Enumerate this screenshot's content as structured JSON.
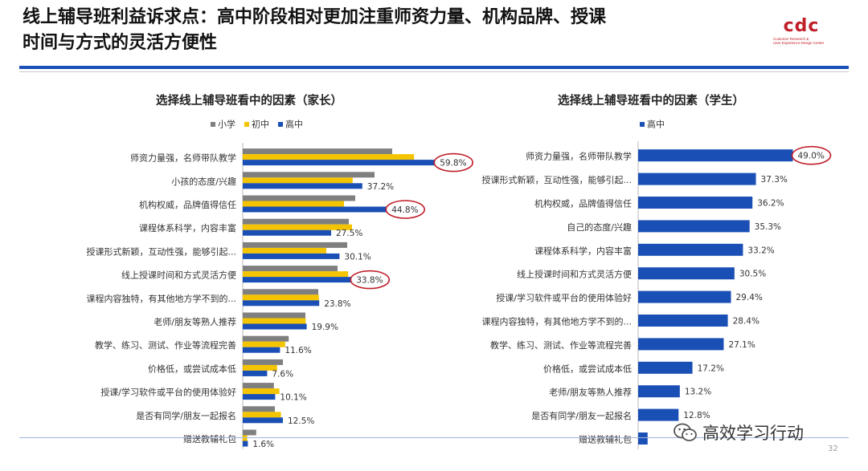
{
  "header": {
    "title": "线上辅导班利益诉求点：高中阶段相对更加注重师资力量、机构品牌、授课\n时间与方式的灵活方便性",
    "logo_text": "CDC",
    "logo_subtitle": "Customer Research &\nUser Experience Design Center"
  },
  "chart_data": [
    {
      "type": "bar",
      "orientation": "horizontal",
      "title": "选择线上辅导班看中的因素（家长）",
      "legend_position": "top",
      "categories": [
        "师资力量强，名师带队教学",
        "小孩的态度/兴趣",
        "机构权威，品牌值得信任",
        "课程体系科学，内容丰富",
        "授课形式新颖，互动性强，能够引起...",
        "线上授课时间和方式灵活方便",
        "课程内容独特，有其他地方学不到的...",
        "老师/朋友等熟人推荐",
        "教学、练习、测试、作业等流程完善",
        "价格低，或尝试成本低",
        "授课/学习软件或平台的使用体验好",
        "是否有同学/朋友一起报名",
        "赠送教辅礼包"
      ],
      "series": [
        {
          "name": "小学",
          "color": "#7f7f7f",
          "values": [
            46.5,
            41.0,
            35.0,
            33.0,
            32.5,
            29.5,
            23.5,
            19.5,
            14.3,
            12.5,
            9.7,
            10.0,
            4.2
          ]
        },
        {
          "name": "初中",
          "color": "#f5c400",
          "values": [
            53.3,
            34.2,
            31.5,
            34.0,
            26.0,
            32.8,
            23.7,
            19.6,
            13.2,
            10.7,
            11.4,
            11.9,
            1.4
          ]
        },
        {
          "name": "高中",
          "color": "#1a4fb5",
          "values": [
            59.8,
            37.2,
            44.8,
            27.5,
            30.1,
            33.8,
            23.8,
            19.9,
            11.6,
            7.6,
            10.1,
            12.5,
            1.6
          ]
        }
      ],
      "labels": [
        "59.8%",
        "37.2%",
        "44.8%",
        "27.5%",
        "30.1%",
        "33.8%",
        "23.8%",
        "19.9%",
        "11.6%",
        "7.6%",
        "10.1%",
        "12.5%",
        "1.6%"
      ],
      "highlighted": [
        0,
        2,
        5
      ],
      "xlim": [
        0,
        70
      ]
    },
    {
      "type": "bar",
      "orientation": "horizontal",
      "title": "选择线上辅导班看中的因素（学生）",
      "legend_position": "top",
      "categories": [
        "师资力量强，名师带队教学",
        "授课形式新颖，互动性强，能够引起...",
        "机构权威，品牌值得信任",
        "自己的态度/兴趣",
        "课程体系科学，内容丰富",
        "线上授课时间和方式灵活方便",
        "授课/学习软件或平台的使用体验好",
        "课程内容独特，有其他地方学不到的...",
        "教学、练习、测试、作业等流程完善",
        "价格低，或尝试成本低",
        "老师/朋友等熟人推荐",
        "是否有同学/朋友一起报名",
        "赠送教辅礼包"
      ],
      "series": [
        {
          "name": "高中",
          "color": "#1a4fb5",
          "values": [
            49.0,
            37.3,
            36.2,
            35.3,
            33.2,
            30.5,
            29.4,
            28.4,
            27.1,
            17.2,
            13.2,
            12.8,
            3.0
          ]
        }
      ],
      "labels": [
        "49.0%",
        "37.3%",
        "36.2%",
        "35.3%",
        "33.2%",
        "30.5%",
        "29.4%",
        "28.4%",
        "27.1%",
        "17.2%",
        "13.2%",
        "12.8%",
        ""
      ],
      "highlighted": [
        0
      ],
      "xlim": [
        0,
        70
      ]
    }
  ],
  "footer": {
    "watermark": "高效学习行动",
    "page_number": "32"
  },
  "colors": {
    "accent_blue": "#1a4fb5",
    "highlight_red": "#c0202a",
    "grey": "#7f7f7f",
    "yellow": "#f5c400"
  }
}
